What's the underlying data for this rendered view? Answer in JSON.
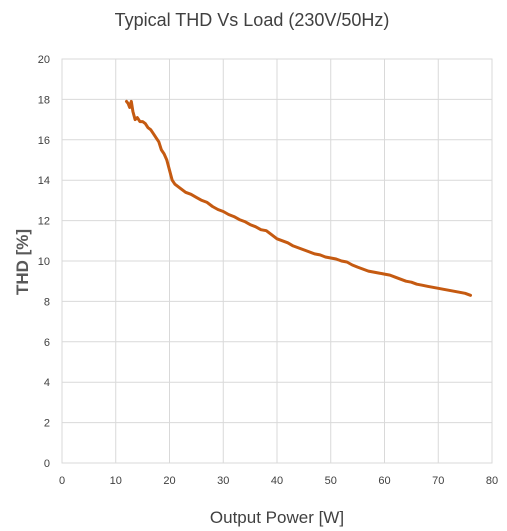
{
  "chart_data": {
    "type": "line",
    "title": "Typical THD Vs Load (230V/50Hz)",
    "xlabel": "Output Power [W]",
    "ylabel": "THD [%]",
    "xlim": [
      0,
      80
    ],
    "ylim": [
      0,
      20
    ],
    "xticks": [
      0,
      10,
      20,
      30,
      40,
      50,
      60,
      70,
      80
    ],
    "yticks": [
      0,
      2,
      4,
      6,
      8,
      10,
      12,
      14,
      16,
      18,
      20
    ],
    "grid": true,
    "legend": "none",
    "series": [
      {
        "color": "#c55a11",
        "x": [
          12.0,
          12.3,
          12.6,
          12.9,
          13.2,
          13.6,
          14.0,
          14.5,
          15.0,
          15.5,
          16.0,
          16.5,
          17.0,
          17.5,
          18.0,
          18.5,
          19.0,
          19.5,
          20.0,
          20.5,
          21.0,
          22.0,
          23.0,
          24.0,
          25.0,
          26.0,
          27.0,
          28.0,
          29.0,
          30.0,
          31.0,
          32.0,
          33.0,
          34.0,
          35.0,
          36.0,
          37.0,
          38.0,
          39.0,
          40.0,
          41.0,
          42.0,
          43.0,
          44.0,
          45.0,
          46.0,
          47.0,
          48.0,
          49.0,
          50.0,
          51.0,
          52.0,
          53.0,
          54.0,
          55.0,
          56.0,
          57.0,
          58.0,
          59.0,
          60.0,
          61.0,
          62.0,
          63.0,
          64.0,
          65.0,
          66.0,
          67.0,
          68.0,
          69.0,
          70.0,
          71.0,
          72.0,
          73.0,
          74.0,
          75.0,
          76.0
        ],
        "y": [
          17.9,
          17.8,
          17.6,
          17.9,
          17.4,
          17.0,
          17.1,
          16.9,
          16.9,
          16.8,
          16.6,
          16.5,
          16.3,
          16.1,
          15.9,
          15.5,
          15.3,
          15.0,
          14.5,
          14.0,
          13.8,
          13.6,
          13.4,
          13.3,
          13.15,
          13.0,
          12.9,
          12.7,
          12.55,
          12.45,
          12.3,
          12.2,
          12.05,
          11.95,
          11.8,
          11.7,
          11.55,
          11.5,
          11.3,
          11.1,
          11.0,
          10.9,
          10.75,
          10.65,
          10.55,
          10.45,
          10.35,
          10.3,
          10.2,
          10.15,
          10.1,
          10.0,
          9.95,
          9.8,
          9.7,
          9.6,
          9.5,
          9.45,
          9.4,
          9.35,
          9.3,
          9.2,
          9.1,
          9.0,
          8.95,
          8.85,
          8.8,
          8.75,
          8.7,
          8.65,
          8.6,
          8.55,
          8.5,
          8.45,
          8.4,
          8.3
        ]
      }
    ]
  }
}
